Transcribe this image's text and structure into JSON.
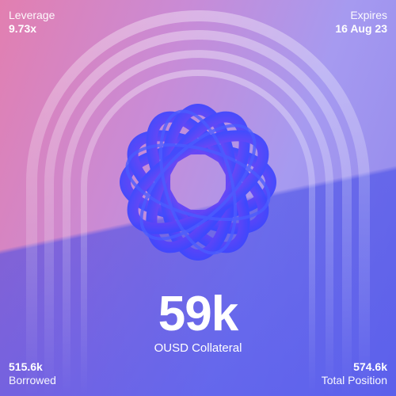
{
  "top_left": {
    "label": "Leverage",
    "value": "9.73x"
  },
  "top_right": {
    "label": "Expires",
    "value": "16 Aug 23"
  },
  "hero": {
    "value": "59k",
    "label": "OUSD Collateral"
  },
  "bottom_left": {
    "value": "515.6k",
    "label": "Borrowed"
  },
  "bottom_right": {
    "value": "574.6k",
    "label": "Total Position"
  },
  "knot_icon": "torus-knot-illustration"
}
